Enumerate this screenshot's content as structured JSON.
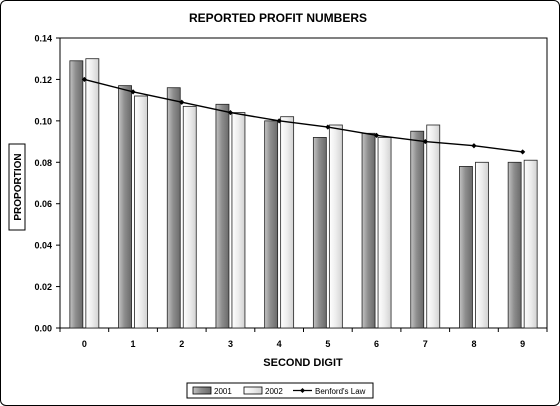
{
  "chart_data": {
    "type": "bar",
    "title": "REPORTED PROFIT NUMBERS",
    "xlabel": "SECOND DIGIT",
    "ylabel": "PROPORTION",
    "categories": [
      "0",
      "1",
      "2",
      "3",
      "4",
      "5",
      "6",
      "7",
      "8",
      "9"
    ],
    "ylim": [
      0,
      0.14
    ],
    "yticks": [
      "0.00",
      "0.02",
      "0.04",
      "0.06",
      "0.08",
      "0.10",
      "0.12",
      "0.14"
    ],
    "grid": false,
    "legend_position": "bottom",
    "series": [
      {
        "name": "2001",
        "type": "bar",
        "color": "#9a9a9a",
        "values": [
          0.129,
          0.117,
          0.116,
          0.108,
          0.1,
          0.092,
          0.094,
          0.095,
          0.078,
          0.08
        ]
      },
      {
        "name": "2002",
        "type": "bar",
        "color": "#f0f0f0",
        "values": [
          0.13,
          0.112,
          0.107,
          0.104,
          0.102,
          0.098,
          0.092,
          0.098,
          0.08,
          0.081
        ]
      },
      {
        "name": "Benford's Law",
        "type": "line",
        "color": "#000000",
        "values": [
          0.12,
          0.114,
          0.109,
          0.104,
          0.1,
          0.097,
          0.093,
          0.09,
          0.088,
          0.085
        ]
      }
    ]
  }
}
